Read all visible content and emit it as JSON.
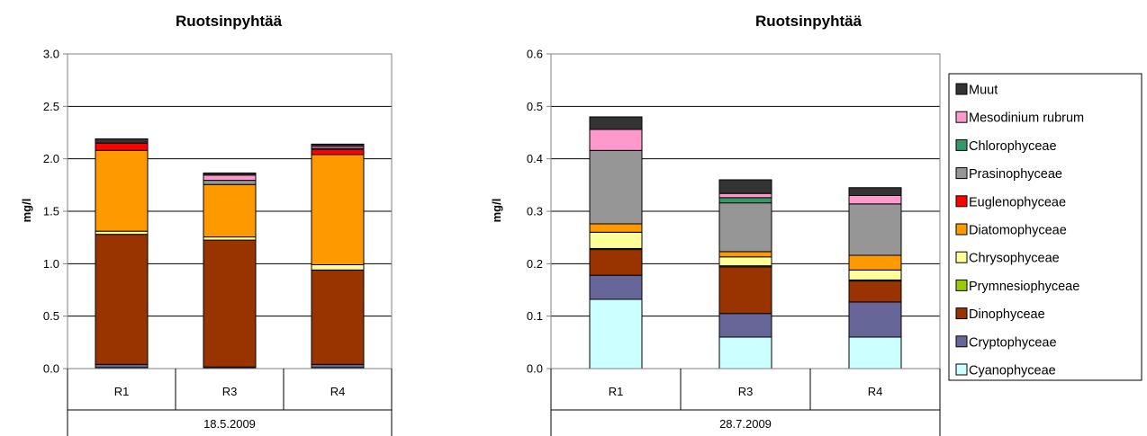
{
  "colors": {
    "Cyanophyceae": "#ccffff",
    "Cryptophyceae": "#666699",
    "Dinophyceae": "#993300",
    "Prymnesiophyceae": "#99cc00",
    "Chrysophyceae": "#ffff99",
    "Diatomophyceae": "#ff9900",
    "Euglenophyceae": "#ff0000",
    "Prasinophyceae": "#969696",
    "Chlorophyceae": "#339966",
    "Mesodinium rubrum": "#ff99cc",
    "Muut": "#333333"
  },
  "legend": {
    "placement": "right",
    "items": [
      "Muut",
      "Mesodinium rubrum",
      "Chlorophyceae",
      "Prasinophyceae",
      "Euglenophyceae",
      "Diatomophyceae",
      "Chrysophyceae",
      "Prymnesiophyceae",
      "Dinophyceae",
      "Cryptophyceae",
      "Cyanophyceae"
    ]
  },
  "chart_data": [
    {
      "type": "bar",
      "stacked": true,
      "title": "Ruotsinpyhtää",
      "ylabel": "mg/l",
      "group_label": "18.5.2009",
      "categories": [
        "R1",
        "R3",
        "R4"
      ],
      "ylim": [
        0,
        3.0
      ],
      "yticks": [
        "0.0",
        "0.5",
        "1.0",
        "1.5",
        "2.0",
        "2.5",
        "3.0"
      ],
      "yticks_values": [
        0,
        0.5,
        1.0,
        1.5,
        2.0,
        2.5,
        3.0
      ],
      "grid": true,
      "series": [
        {
          "name": "Cyanophyceae",
          "values": [
            0.01,
            0.005,
            0.01
          ]
        },
        {
          "name": "Cryptophyceae",
          "values": [
            0.03,
            0.01,
            0.03
          ]
        },
        {
          "name": "Dinophyceae",
          "values": [
            1.24,
            1.21,
            0.9
          ]
        },
        {
          "name": "Prymnesiophyceae",
          "values": [
            0.0,
            0.0,
            0.0
          ]
        },
        {
          "name": "Chrysophyceae",
          "values": [
            0.03,
            0.03,
            0.05
          ]
        },
        {
          "name": "Diatomophyceae",
          "values": [
            0.77,
            0.5,
            1.05
          ]
        },
        {
          "name": "Euglenophyceae",
          "values": [
            0.07,
            0.0,
            0.05
          ]
        },
        {
          "name": "Prasinophyceae",
          "values": [
            0.0,
            0.04,
            0.01
          ]
        },
        {
          "name": "Chlorophyceae",
          "values": [
            0.0,
            0.0,
            0.0
          ]
        },
        {
          "name": "Mesodinium rubrum",
          "values": [
            0.0,
            0.05,
            0.02
          ]
        },
        {
          "name": "Muut",
          "values": [
            0.04,
            0.02,
            0.02
          ]
        }
      ]
    },
    {
      "type": "bar",
      "stacked": true,
      "title": "Ruotsinpyhtää",
      "ylabel": "mg/l",
      "group_label": "28.7.2009",
      "categories": [
        "R1",
        "R3",
        "R4"
      ],
      "ylim": [
        0,
        0.6
      ],
      "yticks": [
        "0.0",
        "0.1",
        "0.2",
        "0.3",
        "0.4",
        "0.5",
        "0.6"
      ],
      "yticks_values": [
        0,
        0.1,
        0.2,
        0.3,
        0.4,
        0.5,
        0.6
      ],
      "grid": true,
      "series": [
        {
          "name": "Cyanophyceae",
          "values": [
            0.132,
            0.06,
            0.06
          ]
        },
        {
          "name": "Cryptophyceae",
          "values": [
            0.046,
            0.045,
            0.067
          ]
        },
        {
          "name": "Dinophyceae",
          "values": [
            0.049,
            0.089,
            0.04
          ]
        },
        {
          "name": "Prymnesiophyceae",
          "values": [
            0.002,
            0.002,
            0.002
          ]
        },
        {
          "name": "Chrysophyceae",
          "values": [
            0.031,
            0.017,
            0.019
          ]
        },
        {
          "name": "Diatomophyceae",
          "values": [
            0.016,
            0.01,
            0.028
          ]
        },
        {
          "name": "Euglenophyceae",
          "values": [
            0.0,
            0.0,
            0.0
          ]
        },
        {
          "name": "Prasinophyceae",
          "values": [
            0.14,
            0.093,
            0.098
          ]
        },
        {
          "name": "Chlorophyceae",
          "values": [
            0.0,
            0.01,
            0.0
          ]
        },
        {
          "name": "Mesodinium rubrum",
          "values": [
            0.04,
            0.008,
            0.016
          ]
        },
        {
          "name": "Muut",
          "values": [
            0.024,
            0.026,
            0.015
          ]
        }
      ]
    }
  ]
}
